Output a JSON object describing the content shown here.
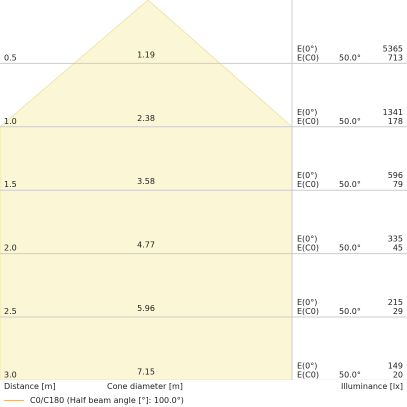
{
  "chart_data": {
    "type": "area",
    "title": "",
    "xlabel": "Cone diameter [m]",
    "ylabel": "Distance [m]",
    "value_axis_label": "Illuminance [lx]",
    "rows": [
      {
        "distance": "0.5",
        "diameter": "1.19",
        "angle": "50.0°",
        "e0": "5365",
        "ec0": "713"
      },
      {
        "distance": "1.0",
        "diameter": "2.38",
        "angle": "50.0°",
        "e0": "1341",
        "ec0": "178"
      },
      {
        "distance": "1.5",
        "diameter": "3.58",
        "angle": "50.0°",
        "e0": "596",
        "ec0": "79"
      },
      {
        "distance": "2.0",
        "diameter": "4.77",
        "angle": "50.0°",
        "e0": "335",
        "ec0": "45"
      },
      {
        "distance": "2.5",
        "diameter": "5.96",
        "angle": "50.0°",
        "e0": "215",
        "ec0": "29"
      },
      {
        "distance": "3.0",
        "diameter": "7.15",
        "angle": "50.0°",
        "e0": "149",
        "ec0": "20"
      }
    ],
    "e0_label": "E(0°)",
    "ec0_label": "E(C0)",
    "legend": "C0/C180 (Half beam angle [°]: 100.0°)",
    "colors": {
      "fill": "#fbf6d6",
      "edge": "#efe7a6",
      "grid": "#cccccc",
      "legend_line": "#f0b37a"
    }
  },
  "footer": {
    "distance_label": "Distance [m]",
    "cone_label": "Cone diameter [m]",
    "illuminance_label": "Illuminance [lx]",
    "legend_text": "C0/C180 (Half beam angle [°]: 100.0°)"
  }
}
